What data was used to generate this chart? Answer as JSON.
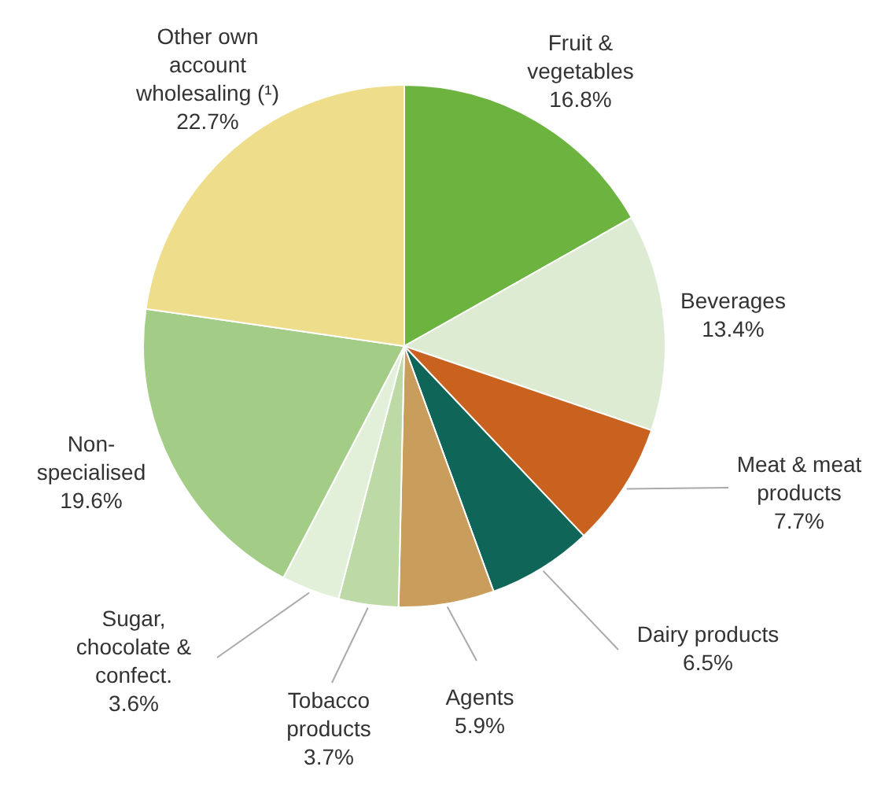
{
  "chart_data": {
    "type": "pie",
    "categories": [
      "Fruit & vegetables",
      "Beverages",
      "Meat & meat products",
      "Dairy products",
      "Agents",
      "Tobacco products",
      "Sugar, chocolate & confect.",
      "Non-specialised",
      "Other own account wholesaling (¹)"
    ],
    "values": [
      16.8,
      13.4,
      7.7,
      6.5,
      5.9,
      3.7,
      3.6,
      19.6,
      22.7
    ],
    "value_labels": [
      "16.8%",
      "13.4%",
      "7.7%",
      "6.5%",
      "5.9%",
      "3.7%",
      "3.6%",
      "19.6%",
      "22.7%"
    ],
    "colors": [
      "#6cb43f",
      "#deebd3",
      "#c9621f",
      "#0e6558",
      "#c99d5b",
      "#bddaa6",
      "#e2efd9",
      "#a3cd87",
      "#eedd8a"
    ],
    "legend": false
  }
}
